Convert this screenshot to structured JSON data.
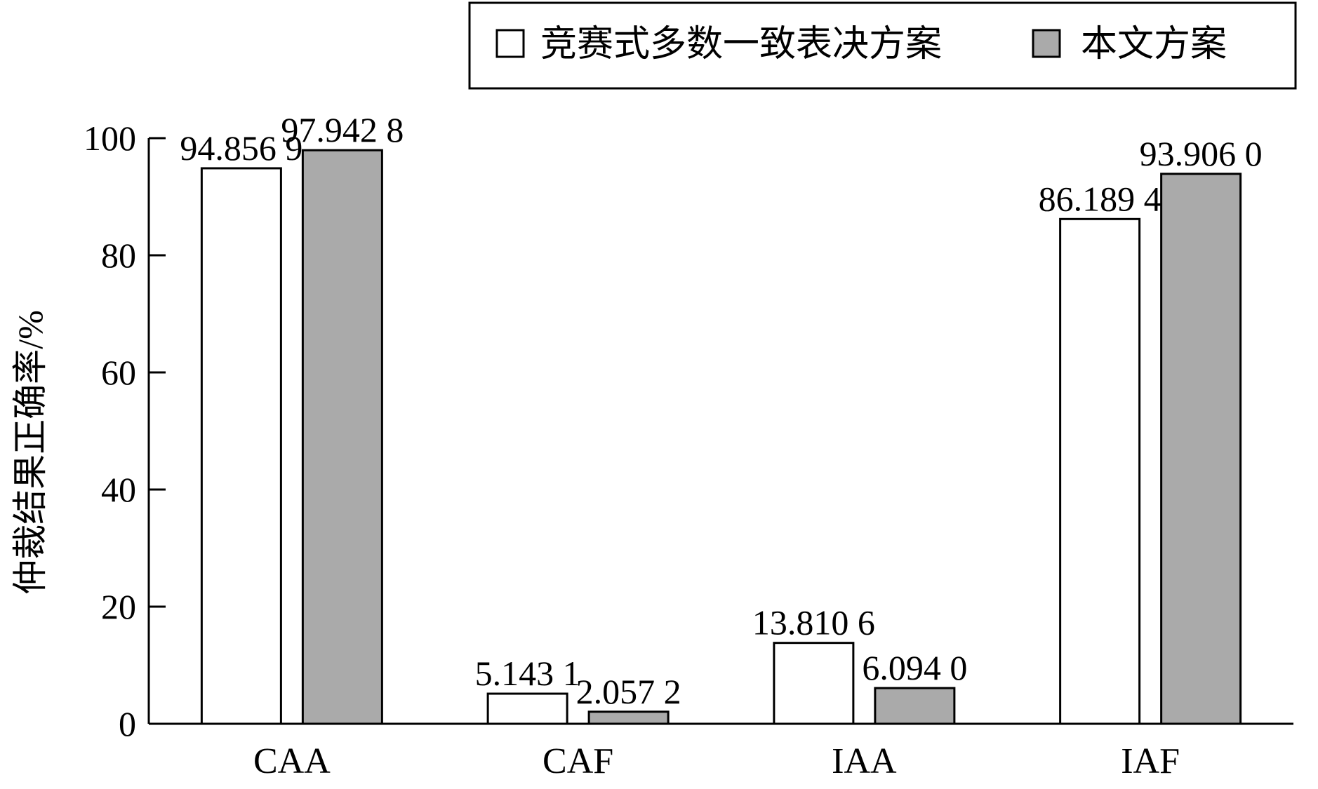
{
  "chart_data": {
    "type": "bar",
    "categories": [
      "CAA",
      "CAF",
      "IAA",
      "IAF"
    ],
    "series": [
      {
        "name": "竞赛式多数一致表决方案",
        "values": [
          94.8569,
          5.1431,
          13.8106,
          86.1894
        ],
        "value_labels": [
          "94.856 9",
          "5.143 1",
          "13.810 6",
          "86.189 4"
        ],
        "color": "#ffffff"
      },
      {
        "name": "本文方案",
        "values": [
          97.9428,
          2.0572,
          6.094,
          93.906
        ],
        "value_labels": [
          "97.942 8",
          "2.057 2",
          "6.094 0",
          "93.906 0"
        ],
        "color": "#aaaaaa"
      }
    ],
    "ylabel": "仲裁结果正确率/%",
    "xlabel": "",
    "ylim": [
      0,
      100
    ],
    "yticks": [
      0,
      20,
      40,
      60,
      80,
      100
    ],
    "grid": false,
    "legend_position": "top-right"
  }
}
